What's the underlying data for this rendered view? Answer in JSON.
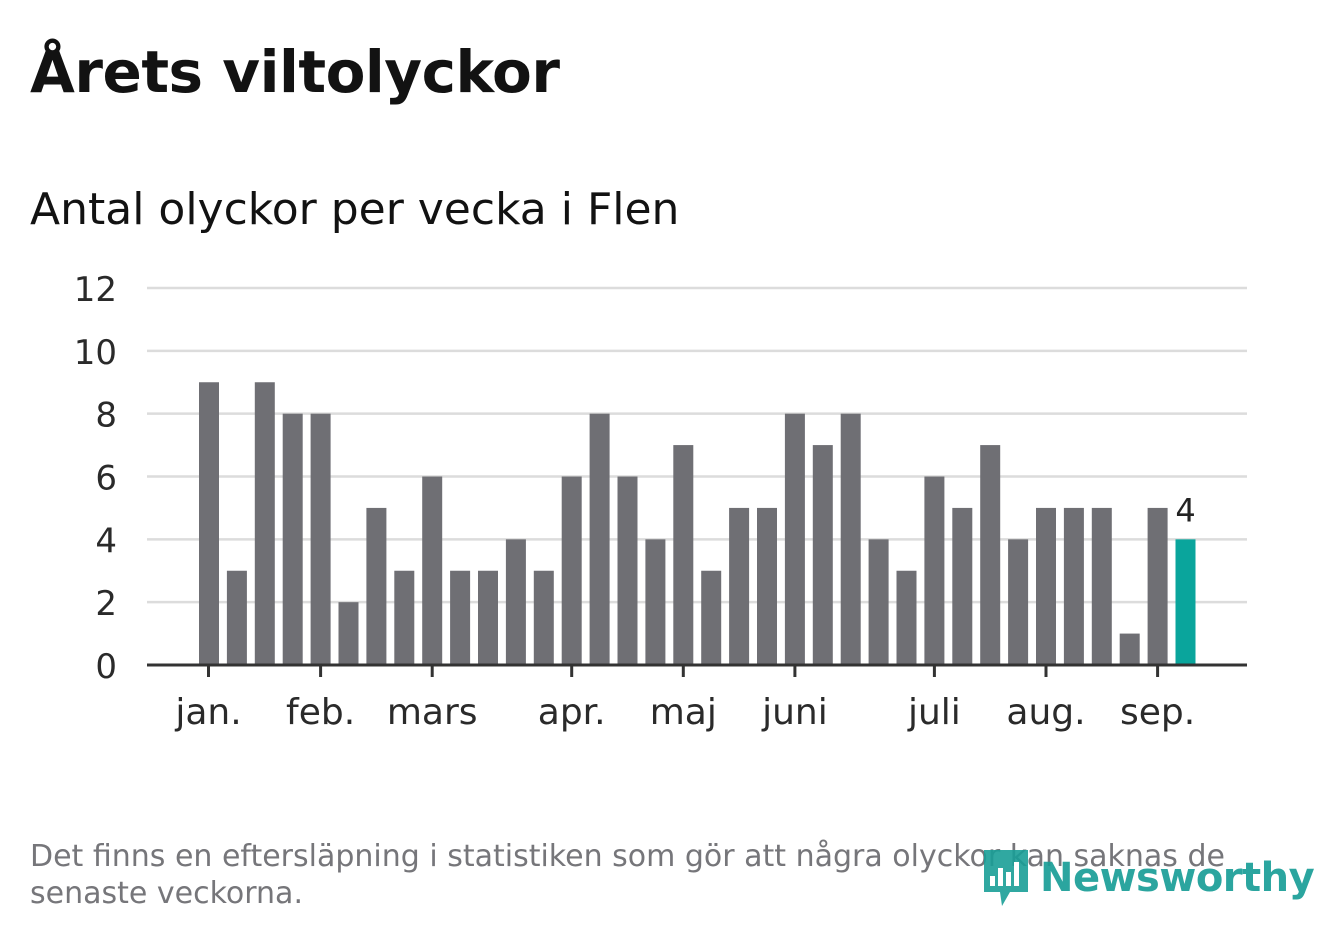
{
  "header": {
    "title": "Årets viltolyckor",
    "subtitle": "Antal olyckor per vecka i Flen"
  },
  "footnote": "Det finns en eftersläpning i statistiken som gör att några olyckor kan saknas de senaste veckorna.",
  "logo": {
    "text": "Newsworthy",
    "icon": "bar-chart-pin-icon"
  },
  "colors": {
    "bar": "#6f6f74",
    "highlight": "#0aa59c",
    "grid": "#dcdcdc",
    "axis": "#333333",
    "text": "#121212",
    "muted": "#76767a"
  },
  "chart_data": {
    "type": "bar",
    "title": "Antal olyckor per vecka i Flen",
    "xlabel": "",
    "ylabel": "",
    "ylim": [
      0,
      12
    ],
    "yticks": [
      0,
      2,
      4,
      6,
      8,
      10,
      12
    ],
    "grid": true,
    "x": [
      1,
      2,
      3,
      4,
      5,
      6,
      7,
      8,
      9,
      10,
      11,
      12,
      13,
      14,
      15,
      16,
      17,
      18,
      19,
      20,
      21,
      22,
      23,
      24,
      25,
      26,
      27,
      28,
      29,
      30,
      31,
      32,
      33,
      34,
      35,
      36
    ],
    "values": [
      9,
      3,
      9,
      8,
      8,
      2,
      5,
      3,
      6,
      3,
      3,
      4,
      3,
      6,
      8,
      6,
      4,
      7,
      3,
      5,
      5,
      8,
      7,
      8,
      4,
      3,
      6,
      5,
      7,
      4,
      5,
      5,
      5,
      1,
      5,
      4
    ],
    "highlight_index": 35,
    "highlight_label": "4",
    "month_ticks": [
      {
        "label": "jan.",
        "week": 1
      },
      {
        "label": "feb.",
        "week": 5
      },
      {
        "label": "mars",
        "week": 9
      },
      {
        "label": "apr.",
        "week": 14
      },
      {
        "label": "maj",
        "week": 18
      },
      {
        "label": "juni",
        "week": 22
      },
      {
        "label": "juli",
        "week": 27
      },
      {
        "label": "aug.",
        "week": 31
      },
      {
        "label": "sep.",
        "week": 35
      }
    ]
  }
}
